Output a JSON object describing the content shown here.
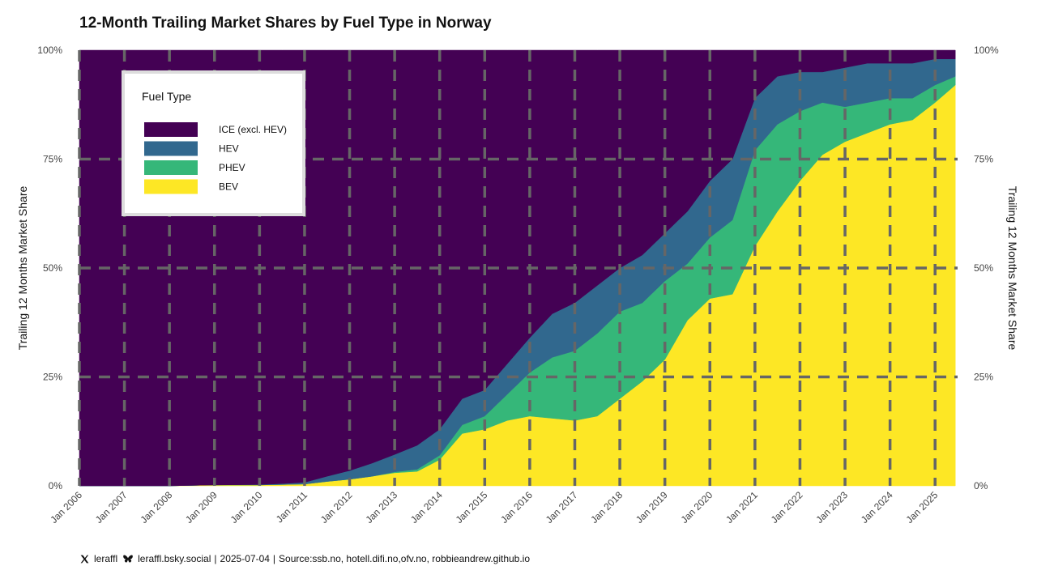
{
  "chart_data": {
    "type": "area",
    "title": "12-Month Trailing Market Shares by Fuel Type in Norway",
    "ylabel_left": "Trailing 12 Months Market Share",
    "ylabel_right": "Trailing 12 Months Market Share",
    "xlabel": "",
    "ylim": [
      0,
      1
    ],
    "xlim": [
      2006.0,
      2025.5
    ],
    "y_ticks": [
      {
        "value": 0,
        "label": "0%"
      },
      {
        "value": 0.25,
        "label": "25%"
      },
      {
        "value": 0.5,
        "label": "50%"
      },
      {
        "value": 0.75,
        "label": "75%"
      },
      {
        "value": 1,
        "label": "100%"
      }
    ],
    "x_ticks": [
      {
        "value": 2006,
        "label": "Jan 2006"
      },
      {
        "value": 2007,
        "label": "Jan 2007"
      },
      {
        "value": 2008,
        "label": "Jan 2008"
      },
      {
        "value": 2009,
        "label": "Jan 2009"
      },
      {
        "value": 2010,
        "label": "Jan 2010"
      },
      {
        "value": 2011,
        "label": "Jan 2011"
      },
      {
        "value": 2012,
        "label": "Jan 2012"
      },
      {
        "value": 2013,
        "label": "Jan 2013"
      },
      {
        "value": 2014,
        "label": "Jan 2014"
      },
      {
        "value": 2015,
        "label": "Jan 2015"
      },
      {
        "value": 2016,
        "label": "Jan 2016"
      },
      {
        "value": 2017,
        "label": "Jan 2017"
      },
      {
        "value": 2018,
        "label": "Jan 2018"
      },
      {
        "value": 2019,
        "label": "Jan 2019"
      },
      {
        "value": 2020,
        "label": "Jan 2020"
      },
      {
        "value": 2021,
        "label": "Jan 2021"
      },
      {
        "value": 2022,
        "label": "Jan 2022"
      },
      {
        "value": 2023,
        "label": "Jan 2023"
      },
      {
        "value": 2024,
        "label": "Jan 2024"
      },
      {
        "value": 2025,
        "label": "Jan 2025"
      }
    ],
    "grid": "dashed",
    "legend": {
      "title": "Fuel Type",
      "placement": "top-left"
    },
    "x": [
      2006.0,
      2007.0,
      2008.0,
      2009.0,
      2010.0,
      2010.5,
      2011.0,
      2011.5,
      2012.0,
      2012.5,
      2013.0,
      2013.5,
      2014.0,
      2014.5,
      2015.0,
      2015.5,
      2016.0,
      2016.5,
      2017.0,
      2017.5,
      2018.0,
      2018.5,
      2019.0,
      2019.5,
      2020.0,
      2020.5,
      2021.0,
      2021.5,
      2022.0,
      2022.5,
      2023.0,
      2023.5,
      2024.0,
      2024.5,
      2025.0,
      2025.45
    ],
    "series": [
      {
        "name": "BEV",
        "color": "#fde725",
        "values": [
          0.0,
          0.0,
          0.0,
          0.002,
          0.002,
          0.003,
          0.004,
          0.01,
          0.015,
          0.022,
          0.03,
          0.033,
          0.06,
          0.12,
          0.13,
          0.15,
          0.16,
          0.155,
          0.15,
          0.16,
          0.2,
          0.24,
          0.29,
          0.38,
          0.43,
          0.44,
          0.55,
          0.63,
          0.7,
          0.76,
          0.79,
          0.81,
          0.83,
          0.84,
          0.88,
          0.92
        ]
      },
      {
        "name": "PHEV",
        "color": "#35b779",
        "values": [
          0.0,
          0.0,
          0.0,
          0.0,
          0.0,
          0.0,
          0.0,
          0.0,
          0.0,
          0.0,
          0.002,
          0.005,
          0.01,
          0.02,
          0.03,
          0.06,
          0.1,
          0.14,
          0.16,
          0.19,
          0.2,
          0.18,
          0.18,
          0.13,
          0.14,
          0.17,
          0.22,
          0.2,
          0.16,
          0.12,
          0.08,
          0.07,
          0.06,
          0.05,
          0.04,
          0.02
        ]
      },
      {
        "name": "HEV",
        "color": "#31688e",
        "values": [
          0.0,
          0.0,
          0.0,
          0.0,
          0.001,
          0.002,
          0.004,
          0.012,
          0.02,
          0.03,
          0.04,
          0.055,
          0.06,
          0.06,
          0.06,
          0.07,
          0.08,
          0.1,
          0.11,
          0.11,
          0.1,
          0.11,
          0.11,
          0.12,
          0.13,
          0.14,
          0.12,
          0.11,
          0.09,
          0.07,
          0.09,
          0.09,
          0.08,
          0.08,
          0.06,
          0.04
        ]
      },
      {
        "name": "ICE (excl. HEV)",
        "color": "#440154",
        "values": [
          1.0,
          1.0,
          1.0,
          0.998,
          0.997,
          0.995,
          0.992,
          0.978,
          0.965,
          0.948,
          0.928,
          0.907,
          0.87,
          0.8,
          0.78,
          0.72,
          0.66,
          0.605,
          0.58,
          0.54,
          0.5,
          0.47,
          0.42,
          0.37,
          0.3,
          0.25,
          0.11,
          0.06,
          0.05,
          0.05,
          0.04,
          0.03,
          0.03,
          0.03,
          0.02,
          0.02
        ]
      }
    ]
  },
  "legend_order": [
    "ICE (excl. HEV)",
    "HEV",
    "PHEV",
    "BEV"
  ],
  "footer": {
    "x_handle": "leraffl",
    "bsky_handle": "leraffl.bsky.social",
    "date": "2025-07-04",
    "source": "Source:ssb.no, hotell.difi.no,ofv.no, robbieandrew.github.io"
  },
  "colors": {
    "grid": "#666666",
    "legend_border": "#dddddd"
  },
  "icons": {
    "x": "x-logo-icon",
    "bluesky": "butterfly-icon"
  }
}
